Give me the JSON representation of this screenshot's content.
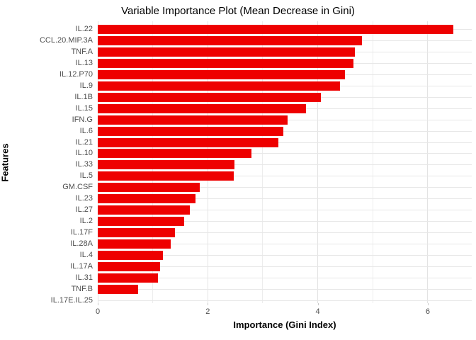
{
  "title": "Variable Importance Plot (Mean Decrease in Gini)",
  "chart_data": {
    "type": "bar",
    "orientation": "horizontal",
    "title": "Variable Importance Plot (Mean Decrease in Gini)",
    "xlabel": "Importance (Gini Index)",
    "ylabel": "Features",
    "categories": [
      "IL.22",
      "CCL.20.MIP.3A",
      "TNF.A",
      "IL.13",
      "IL.12.P70",
      "IL.9",
      "IL.1B",
      "IL.15",
      "IFN.G",
      "IL.6",
      "IL.21",
      "IL.10",
      "IL.33",
      "IL.5",
      "GM.CSF",
      "IL.23",
      "IL.27",
      "IL.2",
      "IL.17F",
      "IL.28A",
      "IL.4",
      "IL.17A",
      "IL.31",
      "TNF.B",
      "IL.17E.IL.25"
    ],
    "values": [
      6.47,
      4.81,
      4.68,
      4.65,
      4.49,
      4.4,
      4.06,
      3.79,
      3.45,
      3.38,
      3.28,
      2.8,
      2.48,
      2.47,
      1.85,
      1.78,
      1.67,
      1.57,
      1.4,
      1.33,
      1.18,
      1.13,
      1.09,
      0.73,
      0.0
    ],
    "xlim": [
      0,
      6.8
    ],
    "x_major_ticks": [
      0,
      2,
      4,
      6
    ],
    "x_minor_ticks": [
      1,
      3,
      5
    ],
    "grid": true,
    "legend_position": "none",
    "bar_color": "#EE0000",
    "major_grid_color": "#E3E3E3",
    "minor_grid_color": "#EDEDED",
    "hgrid_color": "#E7E7E7",
    "tick_label_color": "#4D4D4D"
  }
}
